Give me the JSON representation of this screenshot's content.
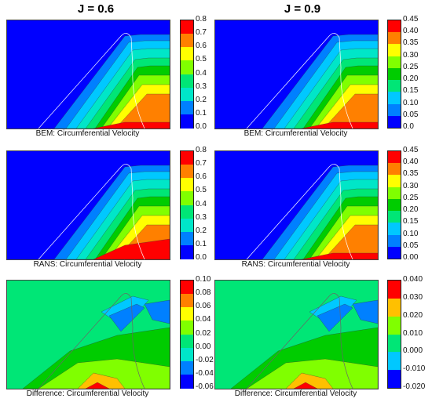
{
  "columns": [
    {
      "title": "J = 0.6"
    },
    {
      "title": "J = 0.9"
    }
  ],
  "chart_data": [
    {
      "type": "heatmap",
      "title": "J = 0.6",
      "caption": "BEM: Circumferential Velocity",
      "colorbar_ticks": [
        "0.8",
        "0.7",
        "0.6",
        "0.5",
        "0.4",
        "0.3",
        "0.2",
        "0.1",
        "0.0"
      ],
      "levels": [
        0.0,
        0.1,
        0.2,
        0.3,
        0.4,
        0.5,
        0.6,
        0.7,
        0.8
      ],
      "colormap": [
        "#0000ff",
        "#0080ff",
        "#00c8ff",
        "#00e6c8",
        "#00e676",
        "#00cc00",
        "#80ff00",
        "#ffff00",
        "#ffc000",
        "#ff8000",
        "#ff0000"
      ]
    },
    {
      "type": "heatmap",
      "title": "J = 0.9",
      "caption": "BEM: Circumferential Velocity",
      "colorbar_ticks": [
        "0.45",
        "0.40",
        "0.35",
        "0.30",
        "0.25",
        "0.20",
        "0.15",
        "0.10",
        "0.05",
        "0.0"
      ],
      "levels": [
        0.0,
        0.05,
        0.1,
        0.15,
        0.2,
        0.25,
        0.3,
        0.35,
        0.4,
        0.45
      ],
      "colormap": [
        "#0000ff",
        "#0080ff",
        "#00c8ff",
        "#00e6c8",
        "#00e676",
        "#00cc00",
        "#80ff00",
        "#ffff00",
        "#ffc000",
        "#ff8000",
        "#ff0000"
      ]
    },
    {
      "type": "heatmap",
      "caption": "RANS: Circumferential Velocity",
      "colorbar_ticks": [
        "0.8",
        "0.7",
        "0.6",
        "0.5",
        "0.4",
        "0.3",
        "0.2",
        "0.1",
        "0.0"
      ],
      "levels": [
        0.0,
        0.1,
        0.2,
        0.3,
        0.4,
        0.5,
        0.6,
        0.7,
        0.8
      ],
      "colormap": [
        "#0000ff",
        "#0080ff",
        "#00c8ff",
        "#00e6c8",
        "#00e676",
        "#00cc00",
        "#80ff00",
        "#ffff00",
        "#ffc000",
        "#ff8000",
        "#ff0000"
      ]
    },
    {
      "type": "heatmap",
      "caption": "RANS: Circumferential Velocity",
      "colorbar_ticks": [
        "0.45",
        "0.40",
        "0.35",
        "0.30",
        "0.25",
        "0.20",
        "0.15",
        "0.10",
        "0.05",
        "0.00"
      ],
      "levels": [
        0.0,
        0.05,
        0.1,
        0.15,
        0.2,
        0.25,
        0.3,
        0.35,
        0.4,
        0.45
      ],
      "colormap": [
        "#0000ff",
        "#0080ff",
        "#00c8ff",
        "#00e6c8",
        "#00e676",
        "#00cc00",
        "#80ff00",
        "#ffff00",
        "#ffc000",
        "#ff8000",
        "#ff0000"
      ]
    },
    {
      "type": "heatmap",
      "caption": "Difference: Circumferential Velocity",
      "colorbar_ticks": [
        "0.10",
        "0.08",
        "0.06",
        "0.04",
        "0.02",
        "0.00",
        "-0.02",
        "-0.04",
        "-0.06"
      ],
      "levels": [
        -0.06,
        -0.04,
        -0.02,
        0.0,
        0.02,
        0.04,
        0.06,
        0.08,
        0.1
      ],
      "colormap": [
        "#0000ff",
        "#0080ff",
        "#00c8ff",
        "#00e6c8",
        "#00e676",
        "#00cc00",
        "#80ff00",
        "#ffff00",
        "#ffc000",
        "#ff8000",
        "#ff0000"
      ]
    },
    {
      "type": "heatmap",
      "caption": "Difference: Circumferential Velocity",
      "colorbar_ticks": [
        "0.040",
        "0.030",
        "0.020",
        "0.010",
        "0.000",
        "-0.010",
        "-0.020"
      ],
      "levels": [
        -0.02,
        -0.01,
        0.0,
        0.01,
        0.02,
        0.03,
        0.04
      ],
      "colormap": [
        "#0000ff",
        "#0080ff",
        "#00c8ff",
        "#00e6c8",
        "#00e676",
        "#00cc00",
        "#80ff00",
        "#ffff00",
        "#ffc000",
        "#ff8000",
        "#ff0000"
      ]
    }
  ]
}
